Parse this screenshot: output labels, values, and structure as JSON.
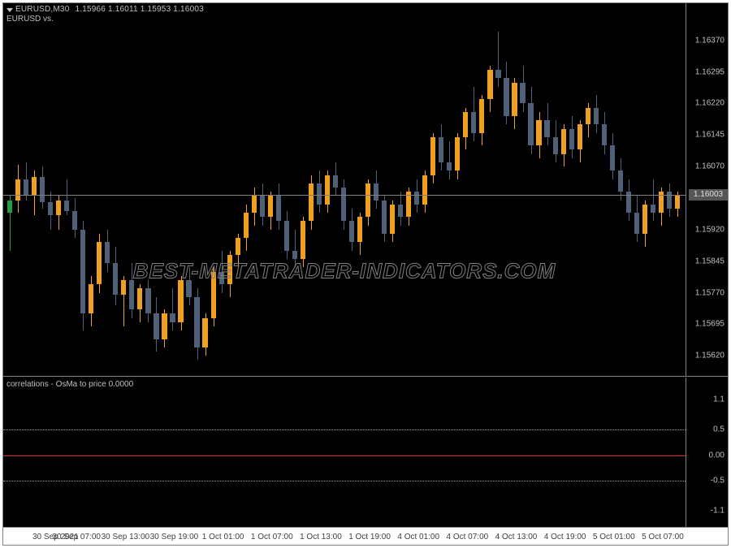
{
  "chart": {
    "symbol_tf": "EURUSD,M30",
    "ohlc": "1.15966 1.16011 1.15953 1.16003",
    "subtitle": "EURUSD vs.",
    "watermark": "BEST-METATRADER-INDICATORS.COM",
    "colors": {
      "background": "#000000",
      "border": "#808080",
      "text": "#c0c0c0",
      "bull": "#f0a020",
      "bear": "#506078",
      "doji": "#20a040",
      "last_line": "#808080",
      "price_tag_bg": "#555555",
      "indicator_line": "#e03030",
      "dotted": "#a0a0a0"
    },
    "price_pane": {
      "ylim": [
        1.1558,
        1.1641
      ],
      "yticks": [
        1.1637,
        1.16295,
        1.1622,
        1.16145,
        1.1607,
        1.15995,
        1.1592,
        1.15845,
        1.1577,
        1.15695,
        1.1562
      ],
      "ytick_labels": [
        "1.16370",
        "1.16295",
        "1.16220",
        "1.16145",
        "1.16070",
        "1.15995",
        "1.15920",
        "1.15845",
        "1.15770",
        "1.15695",
        "1.15620"
      ],
      "last_price": 1.16003,
      "last_price_label": "1.16003",
      "candles": [
        {
          "o": 1.1596,
          "h": 1.16,
          "l": 1.1587,
          "c": 1.1599,
          "t": "doji"
        },
        {
          "o": 1.1599,
          "h": 1.16075,
          "l": 1.1596,
          "c": 1.1604,
          "t": "bull"
        },
        {
          "o": 1.1604,
          "h": 1.1608,
          "l": 1.1599,
          "c": 1.16,
          "t": "bear"
        },
        {
          "o": 1.16,
          "h": 1.1606,
          "l": 1.15955,
          "c": 1.16045,
          "t": "bull"
        },
        {
          "o": 1.16045,
          "h": 1.1607,
          "l": 1.1597,
          "c": 1.15985,
          "t": "bear"
        },
        {
          "o": 1.15985,
          "h": 1.1601,
          "l": 1.1592,
          "c": 1.15955,
          "t": "bear"
        },
        {
          "o": 1.15955,
          "h": 1.16,
          "l": 1.1592,
          "c": 1.1599,
          "t": "bull"
        },
        {
          "o": 1.1599,
          "h": 1.1604,
          "l": 1.15955,
          "c": 1.15965,
          "t": "bear"
        },
        {
          "o": 1.15965,
          "h": 1.15995,
          "l": 1.159,
          "c": 1.1592,
          "t": "bear"
        },
        {
          "o": 1.1592,
          "h": 1.1594,
          "l": 1.1568,
          "c": 1.1572,
          "t": "bear"
        },
        {
          "o": 1.1572,
          "h": 1.1581,
          "l": 1.1569,
          "c": 1.1579,
          "t": "bull"
        },
        {
          "o": 1.1579,
          "h": 1.1591,
          "l": 1.1577,
          "c": 1.1589,
          "t": "bull"
        },
        {
          "o": 1.1589,
          "h": 1.1592,
          "l": 1.1582,
          "c": 1.1584,
          "t": "bear"
        },
        {
          "o": 1.1584,
          "h": 1.1588,
          "l": 1.1574,
          "c": 1.15765,
          "t": "bear"
        },
        {
          "o": 1.15765,
          "h": 1.1581,
          "l": 1.1569,
          "c": 1.158,
          "t": "bull"
        },
        {
          "o": 1.158,
          "h": 1.1584,
          "l": 1.1571,
          "c": 1.1573,
          "t": "bear"
        },
        {
          "o": 1.1573,
          "h": 1.1579,
          "l": 1.157,
          "c": 1.1578,
          "t": "bull"
        },
        {
          "o": 1.1578,
          "h": 1.158,
          "l": 1.157,
          "c": 1.1572,
          "t": "bear"
        },
        {
          "o": 1.1572,
          "h": 1.1576,
          "l": 1.1563,
          "c": 1.1566,
          "t": "bear"
        },
        {
          "o": 1.1566,
          "h": 1.1573,
          "l": 1.1564,
          "c": 1.1572,
          "t": "bull"
        },
        {
          "o": 1.1572,
          "h": 1.1578,
          "l": 1.1568,
          "c": 1.157,
          "t": "bear"
        },
        {
          "o": 1.157,
          "h": 1.1581,
          "l": 1.1568,
          "c": 1.158,
          "t": "bull"
        },
        {
          "o": 1.158,
          "h": 1.1583,
          "l": 1.1574,
          "c": 1.1576,
          "t": "bear"
        },
        {
          "o": 1.1576,
          "h": 1.1578,
          "l": 1.1561,
          "c": 1.1564,
          "t": "bear"
        },
        {
          "o": 1.1564,
          "h": 1.1572,
          "l": 1.1562,
          "c": 1.1571,
          "t": "bull"
        },
        {
          "o": 1.1571,
          "h": 1.1583,
          "l": 1.1569,
          "c": 1.1582,
          "t": "bull"
        },
        {
          "o": 1.1582,
          "h": 1.1587,
          "l": 1.1577,
          "c": 1.1579,
          "t": "bear"
        },
        {
          "o": 1.1579,
          "h": 1.1587,
          "l": 1.1576,
          "c": 1.1586,
          "t": "bull"
        },
        {
          "o": 1.1586,
          "h": 1.1591,
          "l": 1.1583,
          "c": 1.159,
          "t": "bull"
        },
        {
          "o": 1.159,
          "h": 1.1598,
          "l": 1.1587,
          "c": 1.1596,
          "t": "bull"
        },
        {
          "o": 1.1596,
          "h": 1.1602,
          "l": 1.1593,
          "c": 1.16,
          "t": "bull"
        },
        {
          "o": 1.16,
          "h": 1.1603,
          "l": 1.1593,
          "c": 1.1595,
          "t": "bear"
        },
        {
          "o": 1.1595,
          "h": 1.1601,
          "l": 1.1592,
          "c": 1.16,
          "t": "bull"
        },
        {
          "o": 1.16,
          "h": 1.1603,
          "l": 1.1592,
          "c": 1.1594,
          "t": "bear"
        },
        {
          "o": 1.1594,
          "h": 1.15965,
          "l": 1.1585,
          "c": 1.1587,
          "t": "bear"
        },
        {
          "o": 1.1587,
          "h": 1.1592,
          "l": 1.1583,
          "c": 1.1585,
          "t": "bear"
        },
        {
          "o": 1.1585,
          "h": 1.1595,
          "l": 1.1583,
          "c": 1.1594,
          "t": "bull"
        },
        {
          "o": 1.1594,
          "h": 1.1605,
          "l": 1.1592,
          "c": 1.1603,
          "t": "bull"
        },
        {
          "o": 1.1603,
          "h": 1.1606,
          "l": 1.1596,
          "c": 1.1598,
          "t": "bear"
        },
        {
          "o": 1.1598,
          "h": 1.1606,
          "l": 1.1596,
          "c": 1.1605,
          "t": "bull"
        },
        {
          "o": 1.1605,
          "h": 1.1608,
          "l": 1.16,
          "c": 1.1602,
          "t": "bear"
        },
        {
          "o": 1.1602,
          "h": 1.1604,
          "l": 1.1592,
          "c": 1.1594,
          "t": "bear"
        },
        {
          "o": 1.1594,
          "h": 1.1597,
          "l": 1.1587,
          "c": 1.1589,
          "t": "bear"
        },
        {
          "o": 1.1589,
          "h": 1.1596,
          "l": 1.1586,
          "c": 1.1595,
          "t": "bull"
        },
        {
          "o": 1.1595,
          "h": 1.1604,
          "l": 1.1593,
          "c": 1.1603,
          "t": "bull"
        },
        {
          "o": 1.1603,
          "h": 1.1606,
          "l": 1.1597,
          "c": 1.1599,
          "t": "bear"
        },
        {
          "o": 1.1599,
          "h": 1.16,
          "l": 1.1589,
          "c": 1.1591,
          "t": "bear"
        },
        {
          "o": 1.1591,
          "h": 1.1599,
          "l": 1.1589,
          "c": 1.1598,
          "t": "bull"
        },
        {
          "o": 1.1598,
          "h": 1.1601,
          "l": 1.1593,
          "c": 1.1595,
          "t": "bear"
        },
        {
          "o": 1.1595,
          "h": 1.1602,
          "l": 1.1593,
          "c": 1.1601,
          "t": "bull"
        },
        {
          "o": 1.1601,
          "h": 1.1604,
          "l": 1.1596,
          "c": 1.1598,
          "t": "bear"
        },
        {
          "o": 1.1598,
          "h": 1.1606,
          "l": 1.1596,
          "c": 1.1605,
          "t": "bull"
        },
        {
          "o": 1.1605,
          "h": 1.1615,
          "l": 1.1603,
          "c": 1.1614,
          "t": "bull"
        },
        {
          "o": 1.1614,
          "h": 1.1617,
          "l": 1.1606,
          "c": 1.1608,
          "t": "bear"
        },
        {
          "o": 1.1608,
          "h": 1.1613,
          "l": 1.1604,
          "c": 1.1606,
          "t": "bear"
        },
        {
          "o": 1.1606,
          "h": 1.1615,
          "l": 1.1604,
          "c": 1.1614,
          "t": "bull"
        },
        {
          "o": 1.1614,
          "h": 1.1621,
          "l": 1.1611,
          "c": 1.162,
          "t": "bull"
        },
        {
          "o": 1.162,
          "h": 1.1626,
          "l": 1.1613,
          "c": 1.1615,
          "t": "bear"
        },
        {
          "o": 1.1615,
          "h": 1.1624,
          "l": 1.1612,
          "c": 1.1623,
          "t": "bull"
        },
        {
          "o": 1.1623,
          "h": 1.1631,
          "l": 1.162,
          "c": 1.163,
          "t": "bull"
        },
        {
          "o": 1.163,
          "h": 1.1639,
          "l": 1.1626,
          "c": 1.1628,
          "t": "bear"
        },
        {
          "o": 1.1628,
          "h": 1.1632,
          "l": 1.1617,
          "c": 1.1619,
          "t": "bear"
        },
        {
          "o": 1.1619,
          "h": 1.1628,
          "l": 1.1616,
          "c": 1.1627,
          "t": "bull"
        },
        {
          "o": 1.1627,
          "h": 1.1631,
          "l": 1.162,
          "c": 1.1622,
          "t": "bear"
        },
        {
          "o": 1.1622,
          "h": 1.1626,
          "l": 1.161,
          "c": 1.1612,
          "t": "bear"
        },
        {
          "o": 1.1612,
          "h": 1.162,
          "l": 1.1609,
          "c": 1.1618,
          "t": "bull"
        },
        {
          "o": 1.1618,
          "h": 1.1622,
          "l": 1.1612,
          "c": 1.1614,
          "t": "bear"
        },
        {
          "o": 1.1614,
          "h": 1.1618,
          "l": 1.1608,
          "c": 1.161,
          "t": "bear"
        },
        {
          "o": 1.161,
          "h": 1.1617,
          "l": 1.1607,
          "c": 1.1616,
          "t": "bull"
        },
        {
          "o": 1.1616,
          "h": 1.1619,
          "l": 1.1609,
          "c": 1.1611,
          "t": "bear"
        },
        {
          "o": 1.1611,
          "h": 1.1618,
          "l": 1.1608,
          "c": 1.1617,
          "t": "bull"
        },
        {
          "o": 1.1617,
          "h": 1.1622,
          "l": 1.1614,
          "c": 1.1621,
          "t": "bull"
        },
        {
          "o": 1.1621,
          "h": 1.1624,
          "l": 1.1615,
          "c": 1.1617,
          "t": "bear"
        },
        {
          "o": 1.1617,
          "h": 1.162,
          "l": 1.161,
          "c": 1.1612,
          "t": "bear"
        },
        {
          "o": 1.1612,
          "h": 1.1615,
          "l": 1.1604,
          "c": 1.1606,
          "t": "bear"
        },
        {
          "o": 1.1606,
          "h": 1.1609,
          "l": 1.1599,
          "c": 1.1601,
          "t": "bear"
        },
        {
          "o": 1.1601,
          "h": 1.1604,
          "l": 1.1594,
          "c": 1.1596,
          "t": "bear"
        },
        {
          "o": 1.1596,
          "h": 1.16,
          "l": 1.1589,
          "c": 1.1591,
          "t": "bear"
        },
        {
          "o": 1.1591,
          "h": 1.1599,
          "l": 1.1588,
          "c": 1.1598,
          "t": "bull"
        },
        {
          "o": 1.1598,
          "h": 1.1604,
          "l": 1.1594,
          "c": 1.1596,
          "t": "bear"
        },
        {
          "o": 1.1596,
          "h": 1.1602,
          "l": 1.1593,
          "c": 1.1601,
          "t": "bull"
        },
        {
          "o": 1.1601,
          "h": 1.1603,
          "l": 1.1595,
          "c": 1.1597,
          "t": "bear"
        },
        {
          "o": 1.1597,
          "h": 1.1601,
          "l": 1.1595,
          "c": 1.16003,
          "t": "bull"
        }
      ]
    },
    "indicator_pane": {
      "title": "correlations - OsMa to price 0.0000",
      "ylim": [
        -1.3,
        1.3
      ],
      "yticks": [
        1.1,
        0.5,
        0.0,
        -0.5,
        -1.1
      ],
      "ytick_labels": [
        "1.1",
        "0.5",
        "0.00",
        "-0.5",
        "-1.1"
      ],
      "dotted_levels": [
        0.5,
        -0.5
      ],
      "line_level": 0.0
    },
    "x_axis": {
      "labels": [
        "30 Sep 2021",
        "30 Sep 07:00",
        "30 Sep 13:00",
        "30 Sep 19:00",
        "1 Oct 01:00",
        "1 Oct 07:00",
        "1 Oct 13:00",
        "1 Oct 19:00",
        "4 Oct 01:00",
        "4 Oct 07:00",
        "4 Oct 13:00",
        "4 Oct 19:00",
        "5 Oct 01:00",
        "5 Oct 07:00"
      ]
    }
  }
}
